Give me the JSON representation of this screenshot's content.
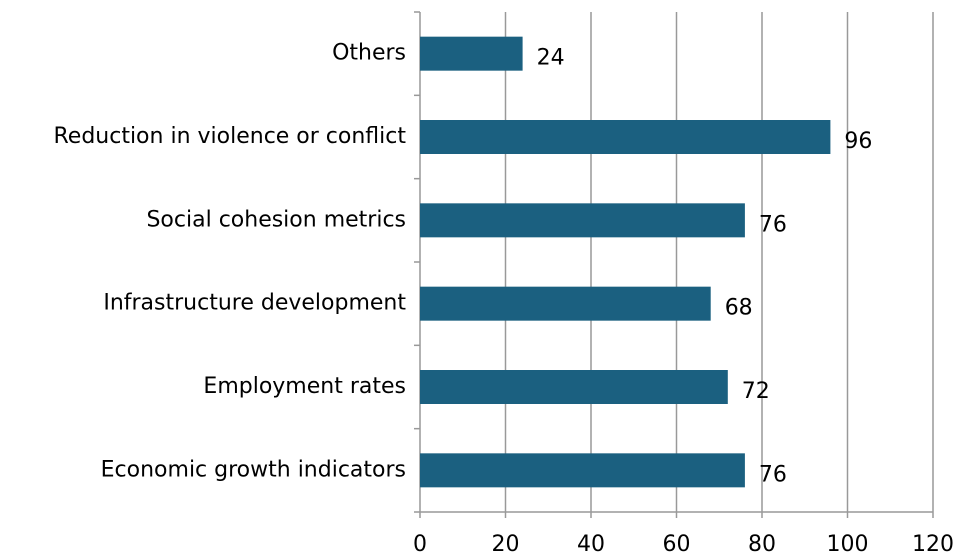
{
  "chart_data": {
    "type": "bar",
    "orientation": "horizontal",
    "categories": [
      "Others",
      "Reduction in violence or conflict",
      "Social cohesion metrics",
      "Infrastructure development",
      "Employment rates",
      "Economic growth indicators"
    ],
    "values": [
      24,
      96,
      76,
      68,
      72,
      76
    ],
    "color": "#1b6080",
    "xlim": [
      0,
      120
    ],
    "xticks": [
      0,
      20,
      40,
      60,
      80,
      100,
      120
    ],
    "grid": true
  }
}
